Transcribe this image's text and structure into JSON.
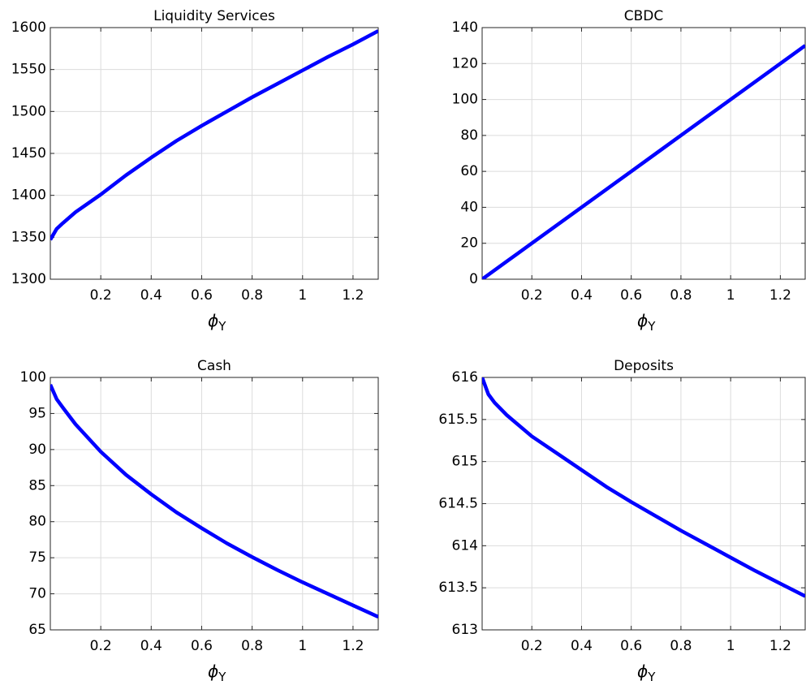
{
  "chart_data": [
    {
      "type": "line",
      "title": "Liquidity Services",
      "x_label": "ϕ",
      "x_label_subscript": "Y",
      "x": [
        0,
        0.025,
        0.05,
        0.1,
        0.2,
        0.3,
        0.4,
        0.5,
        0.6,
        0.7,
        0.8,
        0.9,
        1.0,
        1.1,
        1.2,
        1.3
      ],
      "series": [
        {
          "color": "#0000ff",
          "values": [
            1347,
            1360,
            1367,
            1380,
            1401,
            1424,
            1445,
            1465,
            1483,
            1500,
            1517,
            1533,
            1549,
            1565,
            1580,
            1596
          ]
        }
      ],
      "xlim": [
        0,
        1.3
      ],
      "xticks": [
        0.2,
        0.4,
        0.6,
        0.8,
        1,
        1.2
      ],
      "ylim": [
        1300,
        1600
      ],
      "yticks": [
        1300,
        1350,
        1400,
        1450,
        1500,
        1550,
        1600
      ],
      "grid": true
    },
    {
      "type": "line",
      "title": "CBDC",
      "x_label": "ϕ",
      "x_label_subscript": "Y",
      "x": [
        0,
        0.1,
        0.2,
        0.3,
        0.4,
        0.5,
        0.6,
        0.7,
        0.8,
        0.9,
        1.0,
        1.1,
        1.2,
        1.3
      ],
      "series": [
        {
          "color": "#0000ff",
          "values": [
            0,
            10,
            20,
            30,
            40,
            50,
            60,
            70,
            80,
            90,
            100,
            110,
            120,
            130
          ]
        }
      ],
      "xlim": [
        0,
        1.3
      ],
      "xticks": [
        0.2,
        0.4,
        0.6,
        0.8,
        1,
        1.2
      ],
      "ylim": [
        0,
        140
      ],
      "yticks": [
        0,
        20,
        40,
        60,
        80,
        100,
        120,
        140
      ],
      "grid": true
    },
    {
      "type": "line",
      "title": "Cash",
      "x_label": "ϕ",
      "x_label_subscript": "Y",
      "x": [
        0,
        0.025,
        0.05,
        0.1,
        0.2,
        0.3,
        0.4,
        0.5,
        0.6,
        0.7,
        0.8,
        0.9,
        1.0,
        1.1,
        1.2,
        1.3
      ],
      "series": [
        {
          "color": "#0000ff",
          "values": [
            99,
            97,
            95.8,
            93.5,
            89.7,
            86.5,
            83.8,
            81.3,
            79.1,
            77.0,
            75.1,
            73.3,
            71.6,
            70.0,
            68.4,
            66.8
          ]
        }
      ],
      "xlim": [
        0,
        1.3
      ],
      "xticks": [
        0.2,
        0.4,
        0.6,
        0.8,
        1,
        1.2
      ],
      "ylim": [
        65,
        100
      ],
      "yticks": [
        65,
        70,
        75,
        80,
        85,
        90,
        95,
        100
      ],
      "grid": true
    },
    {
      "type": "line",
      "title": "Deposits",
      "x_label": "ϕ",
      "x_label_subscript": "Y",
      "x": [
        0,
        0.025,
        0.05,
        0.1,
        0.2,
        0.3,
        0.4,
        0.5,
        0.6,
        0.7,
        0.8,
        0.9,
        1.0,
        1.1,
        1.2,
        1.3
      ],
      "series": [
        {
          "color": "#0000ff",
          "values": [
            616,
            615.8,
            615.7,
            615.55,
            615.3,
            615.1,
            614.9,
            614.7,
            614.52,
            614.35,
            614.18,
            614.02,
            613.86,
            613.7,
            613.55,
            613.4
          ]
        }
      ],
      "xlim": [
        0,
        1.3
      ],
      "xticks": [
        0.2,
        0.4,
        0.6,
        0.8,
        1,
        1.2
      ],
      "ylim": [
        613,
        616
      ],
      "yticks": [
        613,
        613.5,
        614,
        614.5,
        615,
        615.5,
        616
      ],
      "grid": true
    }
  ]
}
